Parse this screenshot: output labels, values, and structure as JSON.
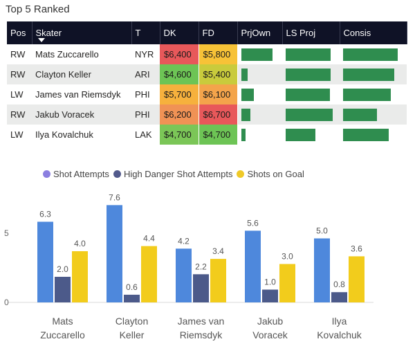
{
  "table": {
    "title": "Top 5 Ranked",
    "headers": [
      "Pos",
      "Skater",
      "T",
      "DK",
      "FD",
      "PrjOwn",
      "LS Proj",
      "Consis"
    ],
    "rows": [
      {
        "pos": "RW",
        "skater": "Mats Zuccarello",
        "team": "NYR",
        "dk": "$6,400",
        "fd": "$5,800",
        "prjown": 0.84,
        "lsproj": 0.9,
        "consis": 0.93,
        "dk_color": "#e8585a",
        "fd_color": "#f7c237"
      },
      {
        "pos": "RW",
        "skater": "Clayton Keller",
        "team": "ARI",
        "dk": "$4,600",
        "fd": "$5,400",
        "prjown": 0.17,
        "lsproj": 0.9,
        "consis": 0.87,
        "dk_color": "#6dc455",
        "fd_color": "#c9cb3c"
      },
      {
        "pos": "LW",
        "skater": "James van Riemsdyk",
        "team": "PHI",
        "dk": "$5,700",
        "fd": "$6,100",
        "prjown": 0.33,
        "lsproj": 0.89,
        "consis": 0.82,
        "dk_color": "#f6b13d",
        "fd_color": "#f4a44b"
      },
      {
        "pos": "RW",
        "skater": "Jakub Voracek",
        "team": "PHI",
        "dk": "$6,200",
        "fd": "$6,700",
        "prjown": 0.24,
        "lsproj": 0.95,
        "consis": 0.58,
        "dk_color": "#f09255",
        "fd_color": "#e8585a"
      },
      {
        "pos": "LW",
        "skater": "Ilya Kovalchuk",
        "team": "LAK",
        "dk": "$4,700",
        "fd": "$4,700",
        "prjown": 0.12,
        "lsproj": 0.6,
        "consis": 0.78,
        "dk_color": "#7bc657",
        "fd_color": "#6dc455"
      }
    ]
  },
  "legend": {
    "items": [
      {
        "label": "Shot Attempts",
        "color": "#8b7fe0"
      },
      {
        "label": "High Danger Shot Attempts",
        "color": "#525a8c"
      },
      {
        "label": "Shots on Goal",
        "color": "#efc928"
      }
    ]
  },
  "axis": {
    "tick_label": "5",
    "tick_zero": "0"
  },
  "chart_data": {
    "type": "bar",
    "categories": [
      [
        "Mats",
        "Zuccarello"
      ],
      [
        "Clayton",
        "Keller"
      ],
      [
        "James van",
        "Riemsdyk"
      ],
      [
        "Jakub",
        "Voracek"
      ],
      [
        "Ilya",
        "Kovalchuk"
      ]
    ],
    "series": [
      {
        "name": "Shot Attempts",
        "color": "#4e88dc",
        "values": [
          6.3,
          7.6,
          4.2,
          5.6,
          5.0
        ],
        "labels": [
          "6.3",
          "7.6",
          "4.2",
          "5.6",
          "5.0"
        ]
      },
      {
        "name": "High Danger Shot Attempts",
        "color": "#4c5a8a",
        "values": [
          2.0,
          0.6,
          2.2,
          1.0,
          0.8
        ],
        "labels": [
          "2.0",
          "0.6",
          "2.2",
          "1.0",
          "0.8"
        ]
      },
      {
        "name": "Shots on Goal",
        "color": "#f2cc1c",
        "values": [
          4.0,
          4.4,
          3.4,
          3.0,
          3.6
        ],
        "labels": [
          "4.0",
          "4.4",
          "3.4",
          "3.0",
          "3.6"
        ]
      }
    ],
    "ylim": [
      0,
      8
    ],
    "yticks": [
      0,
      5
    ]
  }
}
